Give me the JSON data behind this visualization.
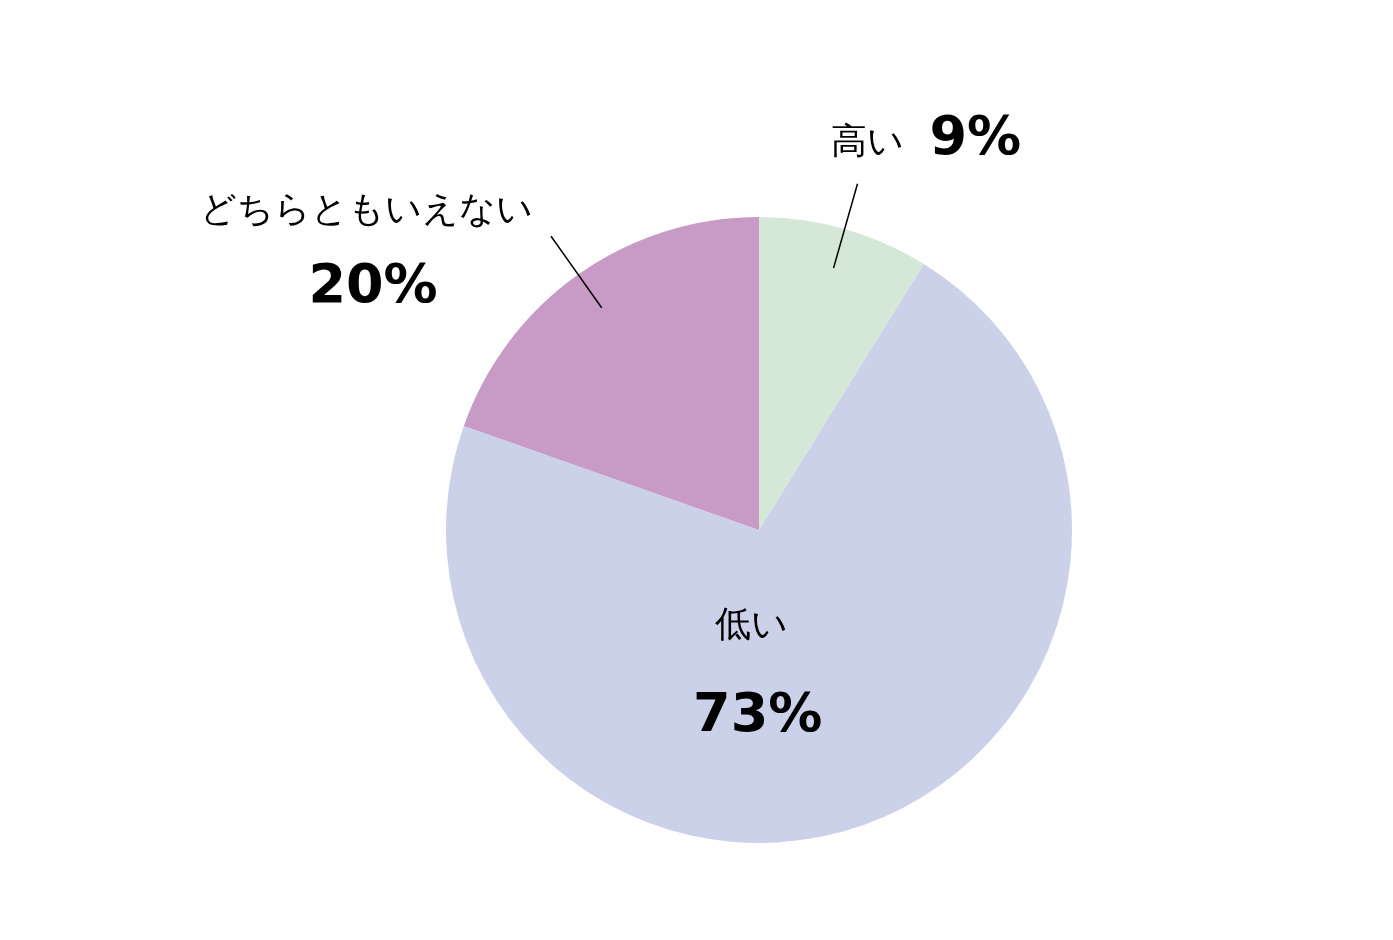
{
  "chart_data": {
    "type": "pie",
    "categories": [
      "高い",
      "低い",
      "どちらともいえない"
    ],
    "values": [
      9,
      73,
      20
    ],
    "value_labels": [
      "9%",
      "73%",
      "20%"
    ],
    "colors": [
      "#d5e8d7",
      "#ccd1ea",
      "#c79bc5"
    ],
    "legend": false
  }
}
